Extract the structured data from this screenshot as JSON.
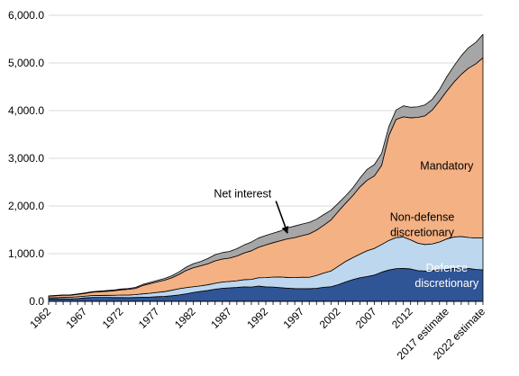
{
  "chart_data": {
    "type": "area",
    "stacked": true,
    "title": "",
    "xlabel": "",
    "ylabel": "",
    "ylim": [
      0,
      6000
    ],
    "yticks": [
      "0.0",
      "1,000.0",
      "2,000.0",
      "3,000.0",
      "4,000.0",
      "5,000.0",
      "6,000.0"
    ],
    "grid": "horizontal",
    "legend": "none",
    "x": [
      1962,
      1963,
      1964,
      1965,
      1966,
      1967,
      1968,
      1969,
      1970,
      1971,
      1972,
      1973,
      1974,
      1975,
      1976,
      1977,
      1978,
      1979,
      1980,
      1981,
      1982,
      1983,
      1984,
      1985,
      1986,
      1987,
      1988,
      1989,
      1990,
      1991,
      1992,
      1993,
      1994,
      1995,
      1996,
      1997,
      1998,
      1999,
      2000,
      2001,
      2002,
      2003,
      2004,
      2005,
      2006,
      2007,
      2008,
      2009,
      2010,
      2011,
      2012,
      2013,
      2014,
      2015,
      2016,
      2017,
      2018,
      2019,
      2020,
      2021,
      2022
    ],
    "xtick_labels": [
      "1962",
      "1967",
      "1972",
      "1977",
      "1982",
      "1987",
      "1992",
      "1997",
      "2002",
      "2007",
      "2012",
      "2017 estimate",
      "2022 estimate"
    ],
    "xtick_years": [
      1962,
      1967,
      1972,
      1977,
      1982,
      1987,
      1992,
      1997,
      2002,
      2007,
      2012,
      2017,
      2022
    ],
    "series": [
      {
        "name": "Defense discretionary",
        "color": "#2f5597",
        "values": [
          52,
          53,
          55,
          51,
          59,
          72,
          82,
          82,
          82,
          79,
          79,
          77,
          81,
          87,
          90,
          98,
          104,
          117,
          134,
          158,
          186,
          210,
          228,
          254,
          274,
          283,
          291,
          304,
          300,
          320,
          303,
          300,
          287,
          276,
          268,
          267,
          265,
          273,
          295,
          306,
          349,
          405,
          455,
          495,
          521,
          551,
          612,
          657,
          687,
          690,
          680,
          644,
          637,
          645,
          660,
          670,
          690,
          700,
          690,
          670,
          660
        ],
        "label": "Defense\ndiscretionary",
        "label_x": 2017.0,
        "label_y": 620,
        "label_color": "#ffffff"
      },
      {
        "name": "Non-defense discretionary",
        "color": "#bdd7ee",
        "values": [
          22,
          25,
          30,
          34,
          37,
          37,
          40,
          42,
          44,
          48,
          53,
          55,
          60,
          70,
          80,
          90,
          100,
          115,
          130,
          130,
          120,
          115,
          120,
          125,
          132,
          135,
          140,
          150,
          160,
          175,
          195,
          210,
          225,
          225,
          230,
          240,
          240,
          270,
          300,
          330,
          385,
          430,
          460,
          495,
          540,
          560,
          580,
          620,
          650,
          660,
          610,
          575,
          555,
          560,
          585,
          640,
          660,
          660,
          650,
          660,
          670
        ],
        "label": "Non-defense\ndiscretionary",
        "label_x": 2013.6,
        "label_y": 1690,
        "label_color": "#000000"
      },
      {
        "name": "Mandatory",
        "color": "#f4b183",
        "values": [
          35,
          40,
          42,
          43,
          50,
          57,
          70,
          78,
          85,
          95,
          110,
          120,
          130,
          175,
          200,
          220,
          240,
          260,
          300,
          360,
          400,
          420,
          440,
          470,
          480,
          490,
          520,
          560,
          600,
          640,
          685,
          720,
          760,
          810,
          840,
          870,
          910,
          950,
          1000,
          1070,
          1150,
          1220,
          1300,
          1410,
          1480,
          1520,
          1660,
          2200,
          2480,
          2520,
          2560,
          2640,
          2700,
          2810,
          2960,
          3100,
          3250,
          3400,
          3550,
          3650,
          3780
        ],
        "label": "Mandatory",
        "label_x": 2017.0,
        "label_y": 2760,
        "label_color": "#000000"
      },
      {
        "name": "Net interest",
        "color": "#a6a6a6",
        "values": [
          7,
          7,
          8,
          9,
          10,
          11,
          11,
          13,
          14,
          15,
          16,
          17,
          21,
          23,
          27,
          30,
          35,
          43,
          53,
          69,
          85,
          90,
          111,
          130,
          136,
          139,
          152,
          169,
          184,
          194,
          199,
          199,
          203,
          232,
          241,
          244,
          241,
          230,
          223,
          206,
          171,
          153,
          160,
          184,
          227,
          237,
          253,
          187,
          196,
          230,
          220,
          221,
          229,
          223,
          240,
          300,
          340,
          390,
          430,
          450,
          490
        ],
        "label": "Net interest",
        "label_x": 1988.8,
        "label_y": 2180,
        "label_color": "#000000"
      }
    ]
  }
}
